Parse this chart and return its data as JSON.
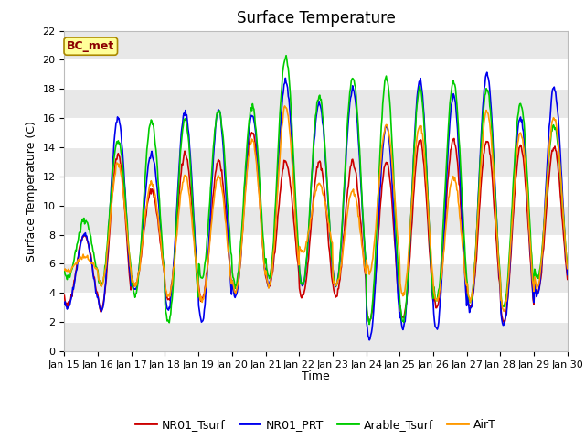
{
  "title": "Surface Temperature",
  "ylabel": "Surface Temperature (C)",
  "xlabel": "Time",
  "annotation": "BC_met",
  "ylim": [
    0,
    22
  ],
  "yticks": [
    0,
    2,
    4,
    6,
    8,
    10,
    12,
    14,
    16,
    18,
    20,
    22
  ],
  "xtick_labels": [
    "Jan 15",
    "Jan 16",
    "Jan 17",
    "Jan 18",
    "Jan 19",
    "Jan 20",
    "Jan 21",
    "Jan 22",
    "Jan 23",
    "Jan 24",
    "Jan 25",
    "Jan 26",
    "Jan 27",
    "Jan 28",
    "Jan 29",
    "Jan 30"
  ],
  "series": {
    "NR01_Tsurf": {
      "color": "#cc0000",
      "linewidth": 1.2
    },
    "NR01_PRT": {
      "color": "#0000ee",
      "linewidth": 1.2
    },
    "Arable_Tsurf": {
      "color": "#00cc00",
      "linewidth": 1.2
    },
    "AirT": {
      "color": "#ff9900",
      "linewidth": 1.2
    }
  },
  "fig_bg": "#ffffff",
  "plot_bg": "#ffffff",
  "band_color": "#e8e8e8",
  "title_fontsize": 12,
  "label_fontsize": 9,
  "tick_fontsize": 8,
  "day_params": {
    "NR01_Tsurf": {
      "mins": [
        3.2,
        2.8,
        4.5,
        3.5,
        3.5,
        4.0,
        4.5,
        3.8,
        3.8,
        2.0,
        2.2,
        3.0,
        3.0,
        2.0,
        4.0
      ],
      "maxs": [
        8.0,
        13.5,
        11.0,
        13.5,
        13.0,
        15.0,
        13.0,
        13.0,
        13.0,
        13.0,
        14.5,
        14.5,
        14.5,
        14.0,
        14.0
      ]
    },
    "NR01_PRT": {
      "mins": [
        3.0,
        2.7,
        4.2,
        2.8,
        2.0,
        3.8,
        4.5,
        4.5,
        4.5,
        0.8,
        1.5,
        1.5,
        2.8,
        1.8,
        3.8
      ],
      "maxs": [
        8.0,
        16.0,
        13.5,
        16.5,
        16.5,
        16.2,
        18.5,
        17.0,
        18.0,
        15.5,
        18.5,
        17.5,
        19.0,
        16.0,
        18.0
      ]
    },
    "Arable_Tsurf": {
      "mins": [
        5.0,
        4.5,
        3.8,
        2.0,
        5.0,
        4.5,
        5.0,
        4.5,
        4.5,
        2.0,
        2.0,
        3.5,
        3.5,
        3.0,
        5.0
      ],
      "maxs": [
        9.0,
        14.5,
        15.8,
        16.0,
        16.5,
        16.8,
        20.2,
        17.5,
        18.8,
        18.8,
        18.0,
        18.5,
        18.0,
        17.0,
        15.5
      ]
    },
    "AirT": {
      "mins": [
        5.5,
        4.5,
        4.5,
        3.8,
        3.5,
        4.0,
        4.5,
        6.8,
        4.5,
        5.5,
        3.8,
        3.5,
        3.5,
        2.8,
        4.5
      ],
      "maxs": [
        6.5,
        12.8,
        11.5,
        12.0,
        12.0,
        14.5,
        16.8,
        11.5,
        11.0,
        15.5,
        15.5,
        12.0,
        16.5,
        15.0,
        16.0
      ]
    }
  }
}
